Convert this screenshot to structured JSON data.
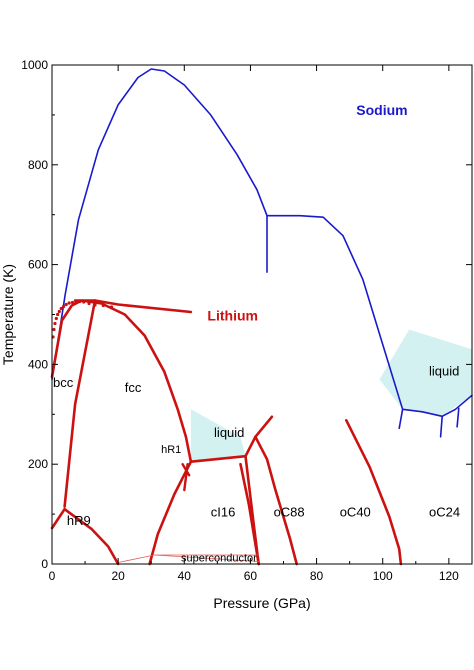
{
  "chart_data": {
    "type": "line",
    "xlabel": "Pressure (GPa)",
    "ylabel": "Temperature (K)",
    "xlim": [
      0,
      127
    ],
    "ylim": [
      0,
      1000
    ],
    "x_ticks": [
      0,
      20,
      40,
      60,
      80,
      100,
      120
    ],
    "y_ticks": [
      0,
      200,
      400,
      600,
      800,
      1000
    ],
    "grid": false,
    "colors": {
      "sodium": "#1a1acc",
      "lithium": "#cc1111",
      "liquid_fill": "#cdeeee",
      "superconductor": "#e06060",
      "frame": "#000000"
    },
    "series_labels": [
      {
        "text": "Sodium",
        "x": 92,
        "y": 900,
        "color": "#1a1acc"
      },
      {
        "text": "Lithium",
        "x": 47,
        "y": 488,
        "color": "#cc1111"
      }
    ],
    "series": [
      {
        "name": "Sodium",
        "color": "#1a1acc",
        "width": 1.6,
        "x": [
          0,
          4,
          8,
          14,
          20,
          26,
          30,
          34,
          40,
          48,
          56,
          62,
          65,
          75,
          82,
          88,
          94,
          100,
          106,
          112,
          118,
          122,
          127
        ],
        "y": [
          370,
          540,
          690,
          830,
          920,
          975,
          992,
          988,
          960,
          900,
          820,
          750,
          698,
          698,
          695,
          658,
          570,
          440,
          310,
          305,
          296,
          310,
          338
        ]
      },
      {
        "name": "Sodium",
        "color": "#1a1acc",
        "width": 1.6,
        "x": [
          65,
          65
        ],
        "y": [
          698,
          585
        ]
      },
      {
        "name": "Sodium",
        "color": "#1a1acc",
        "width": 1.6,
        "x": [
          106,
          105
        ],
        "y": [
          310,
          272
        ]
      },
      {
        "name": "Sodium",
        "color": "#1a1acc",
        "width": 1.6,
        "x": [
          118,
          117.5
        ],
        "y": [
          296,
          255
        ]
      },
      {
        "name": "Sodium",
        "color": "#1a1acc",
        "width": 1.6,
        "x": [
          123,
          122.5
        ],
        "y": [
          312,
          275
        ]
      },
      {
        "name": "Lithium",
        "color": "#cc1111",
        "width": 2.6,
        "x": [
          0,
          3,
          6,
          9,
          15,
          22,
          28,
          34,
          38,
          40.5,
          42
        ],
        "y": [
          375,
          488,
          518,
          528,
          522,
          500,
          458,
          385,
          310,
          255,
          205
        ]
      },
      {
        "name": "Lithium",
        "color": "#cc1111",
        "width": 2.6,
        "x": [
          7,
          13,
          20,
          42
        ],
        "y": [
          528,
          528,
          520,
          505
        ]
      },
      {
        "name": "Lithium",
        "color": "#cc1111",
        "width": 2.6,
        "x": [
          13,
          7,
          3.8
        ],
        "y": [
          528,
          320,
          115
        ]
      },
      {
        "name": "Lithium",
        "color": "#cc1111",
        "width": 2.6,
        "x": [
          0,
          3.8,
          5.2
        ],
        "y": [
          72,
          110,
          103
        ]
      },
      {
        "name": "Lithium",
        "color": "#cc1111",
        "width": 2.6,
        "x": [
          5.2,
          12,
          17,
          20
        ],
        "y": [
          103,
          70,
          35,
          0
        ]
      },
      {
        "name": "Lithium",
        "color": "#cc1111",
        "width": 2.6,
        "x": [
          42,
          37,
          32,
          29.5
        ],
        "y": [
          205,
          140,
          60,
          0
        ]
      },
      {
        "name": "Lithium",
        "color": "#cc1111",
        "width": 2.6,
        "x": [
          42,
          58.5
        ],
        "y": [
          205,
          216
        ]
      },
      {
        "name": "Lithium",
        "color": "#cc1111",
        "width": 2.6,
        "x": [
          58.5,
          61,
          62.5
        ],
        "y": [
          216,
          80,
          0
        ]
      },
      {
        "name": "Lithium",
        "color": "#cc1111",
        "width": 2.6,
        "x": [
          58.5,
          61.5,
          66.5
        ],
        "y": [
          216,
          255,
          295
        ]
      },
      {
        "name": "Lithium",
        "color": "#cc1111",
        "width": 2.6,
        "x": [
          61.5,
          65,
          67.5,
          72,
          74
        ],
        "y": [
          255,
          210,
          150,
          50,
          0
        ]
      },
      {
        "name": "Lithium",
        "color": "#cc1111",
        "width": 2.6,
        "x": [
          57,
          59.5,
          62.5
        ],
        "y": [
          200,
          120,
          0
        ]
      },
      {
        "name": "Lithium",
        "color": "#cc1111",
        "width": 2.6,
        "x": [
          89,
          96,
          102,
          105,
          105.5
        ],
        "y": [
          288,
          195,
          95,
          30,
          0
        ]
      },
      {
        "name": "Lithium",
        "color": "#cc1111",
        "width": 2.4,
        "x": [
          39.5,
          41.5
        ],
        "y": [
          200,
          178
        ]
      },
      {
        "name": "Lithium",
        "color": "#cc1111",
        "width": 2.4,
        "x": [
          41,
          40
        ],
        "y": [
          200,
          148
        ]
      },
      {
        "name": "superconductor",
        "color": "#e06060",
        "width": 0.8,
        "x": [
          20,
          31,
          62.5
        ],
        "y": [
          3,
          18,
          18
        ]
      },
      {
        "name": "superconductor",
        "color": "#e06060",
        "width": 0.8,
        "x": [
          31,
          62.5
        ],
        "y": [
          18,
          5
        ]
      }
    ],
    "liquid_regions": [
      {
        "x": [
          42,
          58.5,
          57,
          42
        ],
        "y": [
          205,
          216,
          255,
          310
        ]
      },
      {
        "x": [
          99,
          106,
          118,
          127,
          127,
          108
        ],
        "y": [
          370,
          310,
          296,
          338,
          430,
          470
        ]
      }
    ],
    "annotations": [
      {
        "text": "bcc",
        "x": 0.3,
        "y": 355
      },
      {
        "text": "fcc",
        "x": 22,
        "y": 345
      },
      {
        "text": "liquid",
        "x": 49,
        "y": 255
      },
      {
        "text": "liquid",
        "x": 114,
        "y": 378
      },
      {
        "text": "hR1",
        "x": 33,
        "y": 222
      },
      {
        "text": "hR9",
        "x": 4.5,
        "y": 78
      },
      {
        "text": "cI16",
        "x": 48,
        "y": 95
      },
      {
        "text": "oC88",
        "x": 67,
        "y": 95
      },
      {
        "text": "oC40",
        "x": 87,
        "y": 95
      },
      {
        "text": "oC24",
        "x": 114,
        "y": 95
      },
      {
        "text": "superconductor",
        "x": 39,
        "y": 5
      }
    ],
    "markers": {
      "color": "#cc1111",
      "x": [
        0.3,
        0.6,
        0.9,
        1.3,
        1.7,
        2.2,
        2.8,
        3.5,
        4.3,
        5.2,
        6.2,
        7.2,
        8.4,
        9.6,
        11.2,
        13,
        15.5,
        18
      ],
      "y": [
        455,
        470,
        482,
        492,
        500,
        506,
        512,
        516,
        520,
        523,
        524,
        525,
        526,
        525,
        522,
        519,
        518,
        515
      ]
    }
  }
}
